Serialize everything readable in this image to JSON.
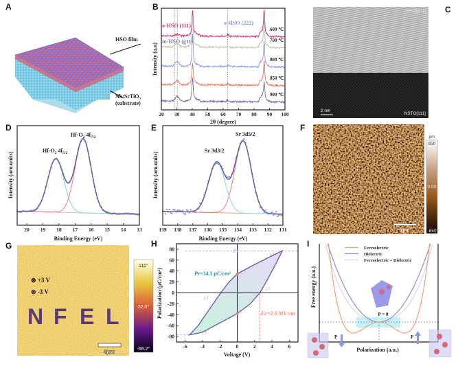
{
  "panel_labels": [
    "A",
    "B",
    "C",
    "D",
    "E",
    "F",
    "G",
    "H",
    "I"
  ],
  "panel_a": {
    "film_label": "HSO film",
    "substrate_label": "Nb:SrTiO₃",
    "substrate_sub": "(substrate)"
  },
  "panel_c": {
    "top_label": "HSO[111]",
    "bottom_label": "NSTO[111]",
    "scale_bar": "2 nm"
  },
  "panel_f": {
    "unit": "pm",
    "max": "850",
    "mid": "0.00",
    "min": "-850",
    "scale_bar": "2μm"
  },
  "panel_g": {
    "label_plus": "⊗ +3 V",
    "label_minus": "⊗ -3 V",
    "letters": [
      "N",
      "F",
      "E",
      "L"
    ],
    "max": "110°",
    "mid": "22.0°",
    "min": "-66.2°",
    "scale_bar": "4μm",
    "colors": {
      "background": "#d9a01f",
      "pattern": "#4a2a78"
    }
  },
  "chart_data": [
    {
      "panel": "B",
      "type": "line",
      "xlabel": "2θ (degree)",
      "ylabel": "Intensity (a.u)",
      "xlim": [
        20,
        100
      ],
      "xticks": [
        20,
        30,
        40,
        50,
        60,
        70,
        80,
        90,
        100
      ],
      "peak_positions": [
        30.2,
        40.2,
        63.0,
        86.5
      ],
      "reference_lines": [
        28.5,
        30.3,
        62.8
      ],
      "annotations": [
        "o-HSO (111)",
        "m-HSO (ġ11)",
        "o-HSO (222)"
      ],
      "series": [
        {
          "name": "600 ℃",
          "color": "#c8387a"
        },
        {
          "name": "700 ℃",
          "color": "#b9c9a6"
        },
        {
          "name": "800 ℃",
          "color": "#8c95e0"
        },
        {
          "name": "850 ℃",
          "color": "#e8735c"
        },
        {
          "name": "900 ℃",
          "color": "#7d68a3"
        }
      ]
    },
    {
      "panel": "D",
      "type": "line",
      "xlabel": "Binding Energy (eV)",
      "ylabel": "Intensity (aru.units)",
      "xlim": [
        20.6,
        13
      ],
      "xticks": [
        20,
        19,
        18,
        17,
        16,
        15,
        14,
        13
      ],
      "peaks": [
        {
          "name": "Hf-O₂ 4f5/2",
          "sub": "5/2",
          "center": 18.2,
          "amplitude": 0.72,
          "color": "#7fdcb8"
        },
        {
          "name": "Hf-O₂ 4f7/2",
          "sub": "7/2",
          "center": 16.5,
          "amplitude": 1.0,
          "color": "#f07b7b"
        }
      ],
      "fit_color": "#6b5f9e",
      "points_color": "#8d97de",
      "background_color": "#f0b8a0"
    },
    {
      "panel": "E",
      "type": "line",
      "xlabel": "Binding Energy (eV)",
      "ylabel": "Intensity (aru.units)",
      "xlim": [
        139,
        131
      ],
      "xticks": [
        139,
        138,
        137,
        136,
        135,
        134,
        133,
        132,
        131
      ],
      "peaks": [
        {
          "name": "Sr 3d3/2",
          "center": 135.4,
          "amplitude": 0.7,
          "color": "#7fd8e0"
        },
        {
          "name": "Sr 3d5/2",
          "center": 133.65,
          "amplitude": 1.0,
          "color": "#f07b7b"
        }
      ],
      "fit_color": "#6b5f9e",
      "points_color": "#8d97de",
      "background_color": "#f4a070"
    },
    {
      "panel": "H",
      "type": "line",
      "xlabel": "Voltage (V)",
      "ylabel": "Polarization (μC/cm²)",
      "xlim": [
        -7,
        7
      ],
      "ylim": [
        -90,
        90
      ],
      "xticks": [
        -6,
        -4,
        -2,
        0,
        2,
        4,
        6
      ],
      "yticks": [
        80,
        60,
        40,
        20,
        0,
        -20,
        -40,
        -60,
        -80
      ],
      "upper_branch": [
        [
          5.2,
          77
        ],
        [
          4,
          68
        ],
        [
          2,
          52
        ],
        [
          0,
          35
        ],
        [
          -1,
          19
        ],
        [
          -1.9,
          0
        ],
        [
          -3,
          -25
        ],
        [
          -4.5,
          -60
        ],
        [
          -5.5,
          -77
        ]
      ],
      "lower_branch": [
        [
          -5.5,
          -77
        ],
        [
          -4,
          -72
        ],
        [
          -2,
          -55
        ],
        [
          0,
          -38
        ],
        [
          1.5,
          -20
        ],
        [
          2.6,
          0
        ],
        [
          3.5,
          25
        ],
        [
          4.5,
          55
        ],
        [
          5.2,
          77
        ]
      ],
      "annotations": {
        "ps": "Ps",
        "pr": "Pr=34.5 μC/cm²",
        "ec": "Ec=2.5 MV/cm"
      },
      "pr_value": 34.5,
      "ec_value": 2.6,
      "ps_value": 77,
      "colors": {
        "loop": "#6b5f9e",
        "fill_top": "#e6d8f4",
        "fill_bottom": "#c8f3e0",
        "pr": "#2a8c98",
        "ec": "#f08a7a",
        "ps": "#c8b0e8"
      }
    },
    {
      "panel": "I",
      "type": "line",
      "xlabel": "Polarization (a.u.)",
      "ylabel": "Free energy (a.u.)",
      "legend_position": "top",
      "series": [
        {
          "name": "Ferroelectric",
          "color": "#f5a070"
        },
        {
          "name": "Dielectric",
          "color": "#8a90dc"
        },
        {
          "name": "Ferroelectric + Dielectric",
          "color": "#d8d4f0"
        }
      ],
      "annotations": {
        "center": "P = 0",
        "left": "P",
        "right": "P"
      }
    }
  ]
}
